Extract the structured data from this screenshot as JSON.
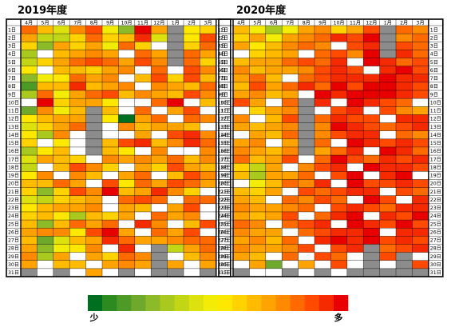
{
  "chart_data": [
    {
      "type": "heatmap",
      "title": "2019年度",
      "columns": [
        "4月",
        "5月",
        "6月",
        "7月",
        "8月",
        "9月",
        "10月",
        "11月",
        "12月",
        "1月",
        "2月",
        "3月"
      ],
      "rows": [
        "1日",
        "2日",
        "3日",
        "4日",
        "5日",
        "6日",
        "7日",
        "8日",
        "9日",
        "10日",
        "11日",
        "12日",
        "13日",
        "14日",
        "15日",
        "16日",
        "17日",
        "18日",
        "19日",
        "20日",
        "21日",
        "22日",
        "23日",
        "24日",
        "25日",
        "26日",
        "27日",
        "28日",
        "29日",
        "30日",
        "31日"
      ],
      "cells": [
        "14 11 7 13 15 8 4 18 12 G 9 10",
        "12 6 6 10 14 10 11 16 7 G 9 15",
        "10 4 12 10 12 8 14 10 W G 10 14",
        "5 W 11 12 13 12 W 14 12 G 14 12",
        "6 10 12 14 15 14 12 15 13 G 14 10",
        "9 W 11 11 10 12 13 W 14 W 15 13",
        "4 8 9 14 12 13 W 11 15 10 15 11",
        "2 11 11 16 11 12 13 W 13 12 11 14",
        "5 14 8 12 14 15 11 13 12 11 15 13",
        "W 17 10 12 12 9 W W 14 17 W 11",
        "3 13 8 11 G 11 W 14 W 12 15 W",
        "9 11 12 12 G 9 0 12 14 W 14 13",
        "7 10 12 14 G W 13 11 12 12 11 W",
        "9 5 13 W G W W 12 W 15 16 13",
        "10 W 9 W G 11 15 16 11 13 16 14",
        "5 9 11 W G 11 9 W 13 W W 13",
        "7 12 11 10 W 13 12 13 12 14 11 13",
        "6 W 11 15 13 10 W 12 10 15 12 11",
        "9 13 W 13 11 W 12 14 W 11 15 13",
        "11 11 14 12 W 15 9 14 12 15 14 12",
        "10 4 10 15 13 17 11 12 16 13 10 W",
        "7 6 10 11 12 W 14 15 14 W 14 14",
        "9 11 12 12 13 W 12 11 W 12 15 W",
        "10 11 9 5 11 10 12 W 14 12 13 W",
        "11 4 11 14 12 14 W 16 13 W 11 15",
        "12 13 13 9 15 17 12 W 14 12 15 W",
        "11 3 7 11 12 16 14 12 12 13 14 14",
        "12 4 8 9 13 W 16 W G 6 12 14",
        "13 5 12 W 12 10 14 13 G W 11 13",
        "12 W 11 11 W 12 13 12 G 12 W 12",
        "G W G W 12 W G W G G W G"
      ]
    },
    {
      "type": "heatmap",
      "title": "2020年度",
      "columns": [
        "4月",
        "5月",
        "6月",
        "7月",
        "8月",
        "9月",
        "10月",
        "11月",
        "12月",
        "1月",
        "2月",
        "3月"
      ],
      "rows": [
        "1日",
        "2日",
        "3日",
        "4日",
        "5日",
        "6日",
        "7日",
        "8日",
        "9日",
        "10日",
        "11日",
        "12日",
        "13日",
        "14日",
        "15日",
        "16日",
        "17日",
        "18日",
        "19日",
        "20日",
        "21日",
        "22日",
        "23日",
        "24日",
        "25日",
        "26日",
        "27日",
        "28日",
        "29日",
        "30日",
        "31日"
      ],
      "cells": [
        "11 8 5 8 12 13 10 12 15 G 14 13",
        "10 12 8 12 13 14 16 15 17 G 13 14",
        "12 9 11 13 14 13 W 15 16 G 15 14",
        "W 10 11 12 W 14 15 13 17 G 16 14",
        "11 12 12 14 15 14 16 W 17 16 14 15",
        "13 11 12 12 13 15 16 15 W 16 17 15",
        "12 14 11 W 14 15 16 16 16 17 16 16",
        "11 15 12 14 16 14 17 15 17 17 16 15",
        "12 13 11 12 W 17 16 17 17 17 16 15",
        "15 12 W 14 G 16 W 17 16 15 14 W",
        "W 10 12 13 G W 15 16 W 15 13 12",
        "13 W 11 15 G 14 16 15 15 W 16 16",
        "12 11 12 13 G 13 17 16 15 14 15 16",
        "W 12 11 14 G 13 15 16 16 W 14 13",
        "12 13 W 12 G 14 W 17 16 15 16 15",
        "13 12 11 13 G 12 14 16 W 17 16 14",
        "14 11 12 15 W 14 17 15 14 16 15 16",
        "10 6 12 W 13 15 16 W 17 16 16 15",
        "11 5 12 12 14 W 15 17 W 16 17 W",
        "W 8 11 14 13 16 W 17 15 15 16 15",
        "11 10 12 W 15 14 15 16 16 W 15 14",
        "12 11 W 14 13 15 14 W 17 15 W 16",
        "13 12 12 13 14 W 15 16 15 14 16 16",
        "12 11 12 15 W 14 16 17 W 16 15 17",
        "14 13 W 14 15 16 W 17 16 15 17 15",
        "13 12 12 W 14 15 16 16 17 W 16 16",
        "12 13 11 14 W 16 17 16 17 15 16 15",
        "13 12 12 13 15 W 15 16 G 14 15 16",
        "12 11 W 14 W 15 14 W G 15 G W",
        "W 12 3 W 12 W 15 W G W G 15",
        "G W W G W G W G G G G G"
      ]
    }
  ],
  "legend": {
    "colors": [
      "#006f20",
      "#2d8a20",
      "#4e9a26",
      "#6ea92b",
      "#8dba28",
      "#a9c91f",
      "#c3d616",
      "#dde10d",
      "#f3ec07",
      "#ffe800",
      "#ffd200",
      "#ffbb00",
      "#ffa300",
      "#ff8a00",
      "#ff6a00",
      "#ff4a00",
      "#f52a00",
      "#e80000"
    ],
    "low_label": "少",
    "high_label": "多"
  },
  "missing_color": "#8c8c8c",
  "empty_color": "#ffffff"
}
